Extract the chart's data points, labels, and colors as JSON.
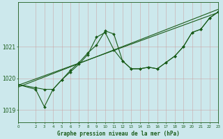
{
  "xlabel": "Graphe pression niveau de la mer (hPa)",
  "background_color": "#cce8ec",
  "grid_color": "#c8a0a0",
  "line_color": "#1a5c1a",
  "text_color": "#1a5c1a",
  "xlim": [
    0,
    23
  ],
  "ylim": [
    1018.6,
    1022.4
  ],
  "yticks": [
    1019,
    1020,
    1021
  ],
  "xticks": [
    0,
    2,
    3,
    4,
    5,
    6,
    7,
    8,
    9,
    10,
    11,
    12,
    13,
    14,
    15,
    16,
    17,
    18,
    19,
    20,
    21,
    22,
    23
  ],
  "line1_x": [
    0,
    2,
    3,
    4,
    5,
    6,
    7,
    8,
    9,
    10,
    11,
    12,
    13,
    14,
    15,
    16,
    17,
    18,
    19,
    20,
    21,
    22,
    23
  ],
  "line1_y": [
    1019.8,
    1019.65,
    1019.1,
    1019.65,
    1019.95,
    1020.25,
    1020.5,
    1020.8,
    1021.05,
    1021.5,
    1021.4,
    1020.55,
    1020.3,
    1020.3,
    1020.35,
    1020.3,
    1020.5,
    1020.7,
    1021.0,
    1021.45,
    1021.55,
    1021.9,
    1022.1
  ],
  "line2_x": [
    0,
    2,
    3,
    4,
    5,
    6,
    7,
    8,
    9,
    10,
    11,
    12,
    13,
    14,
    15,
    16,
    17,
    18,
    19,
    20,
    21,
    22,
    23
  ],
  "line2_y": [
    1019.8,
    1019.7,
    1019.65,
    1019.65,
    1019.95,
    1020.2,
    1020.45,
    1020.75,
    1021.3,
    1021.45,
    1020.9,
    1020.55,
    1020.3,
    1020.3,
    1020.35,
    1020.3,
    1020.5,
    1020.7,
    1021.0,
    1021.45,
    1021.55,
    1021.9,
    1022.1
  ],
  "trend1_x": [
    0,
    23
  ],
  "trend1_y": [
    1019.72,
    1022.18
  ],
  "trend2_x": [
    0,
    23
  ],
  "trend2_y": [
    1019.78,
    1022.08
  ]
}
